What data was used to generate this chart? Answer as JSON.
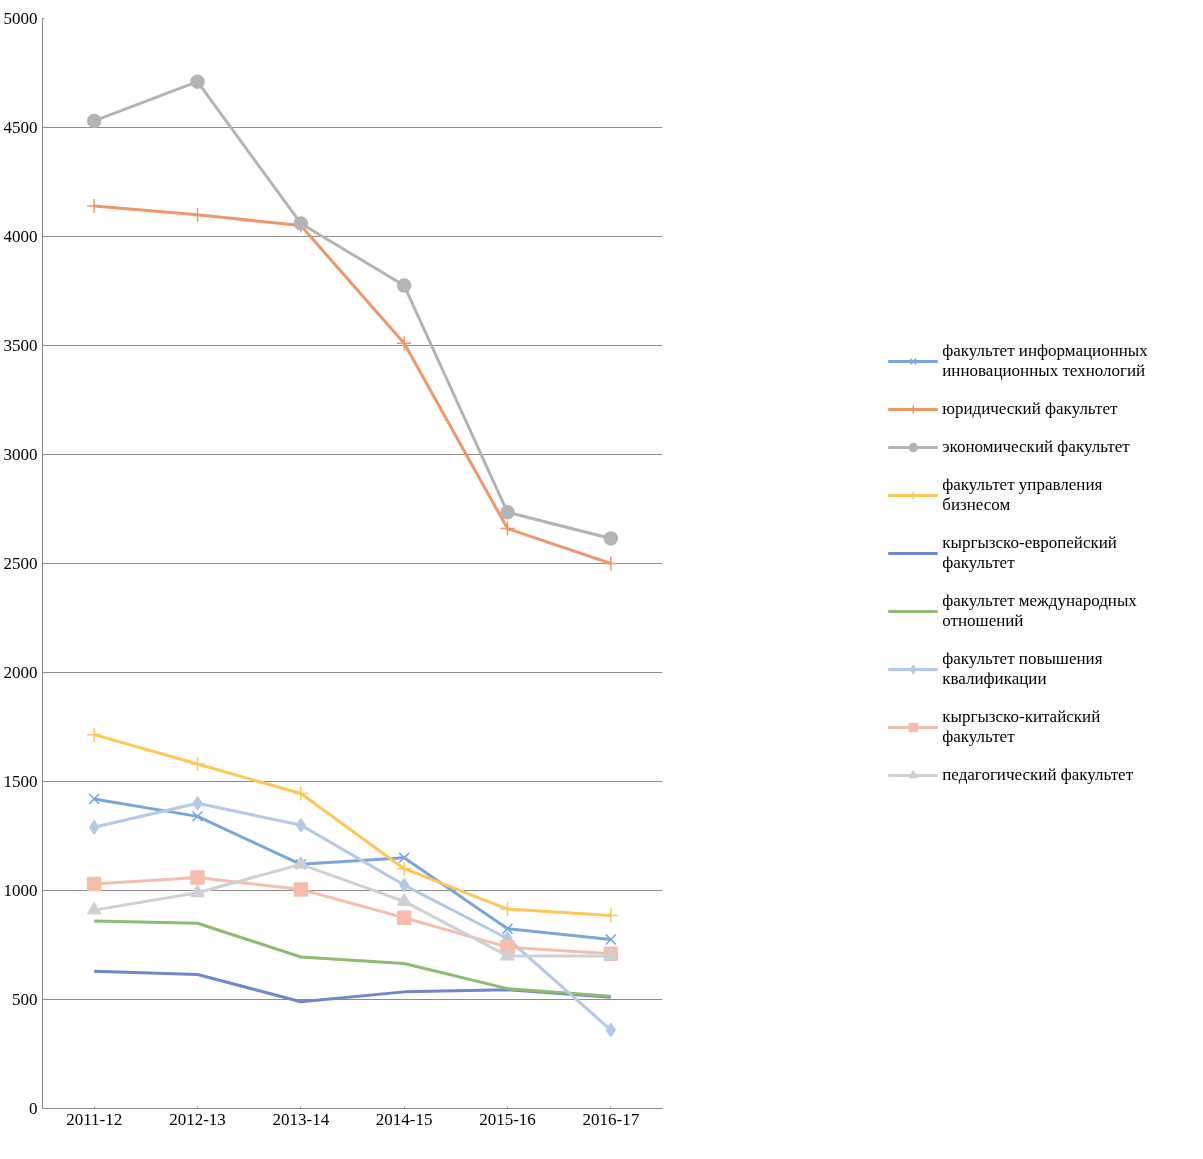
{
  "chart_data": {
    "type": "line",
    "categories": [
      "2011-12",
      "2012-13",
      "2013-14",
      "2014-15",
      "2015-16",
      "2016-17"
    ],
    "ylim": [
      0,
      5000
    ],
    "yticks": [
      0,
      500,
      1000,
      1500,
      2000,
      2500,
      3000,
      3500,
      4000,
      4500,
      5000
    ],
    "grid": "y",
    "legend": "right",
    "series": [
      {
        "name": "факультет информационных инновационных технологий",
        "color": "#7aa6dc",
        "marker": "x",
        "values": [
          1420,
          1340,
          1120,
          1150,
          825,
          775
        ]
      },
      {
        "name": "юридический факультет",
        "color": "#f1956a",
        "marker": "cross",
        "values": [
          4140,
          4100,
          4050,
          3510,
          2660,
          2500
        ]
      },
      {
        "name": "экономический факультет",
        "color": "#b4b4b4",
        "marker": "circle",
        "values": [
          4530,
          4710,
          4060,
          3775,
          2735,
          2615
        ]
      },
      {
        "name": "факультет управления бизнесом",
        "color": "#ffc65a",
        "marker": "cross",
        "values": [
          1715,
          1580,
          1445,
          1100,
          915,
          885
        ]
      },
      {
        "name": "кыргызско-европейский факультет",
        "color": "#6f87cc",
        "marker": "none",
        "values": [
          630,
          615,
          490,
          535,
          545,
          510
        ]
      },
      {
        "name": "факультет международных отношений",
        "color": "#8cbc6f",
        "marker": "none",
        "values": [
          860,
          850,
          695,
          665,
          550,
          515
        ]
      },
      {
        "name": "факультет повышения квалификации",
        "color": "#b4c9e8",
        "marker": "diamond",
        "values": [
          1290,
          1400,
          1300,
          1025,
          780,
          360
        ]
      },
      {
        "name": "кыргызско-китайский факультет",
        "color": "#f5beac",
        "marker": "square",
        "values": [
          1030,
          1060,
          1005,
          875,
          740,
          710
        ]
      },
      {
        "name": "педагогический факультет",
        "color": "#d0d0d0",
        "marker": "triangle",
        "values": [
          910,
          990,
          1120,
          950,
          700,
          700
        ]
      }
    ]
  }
}
